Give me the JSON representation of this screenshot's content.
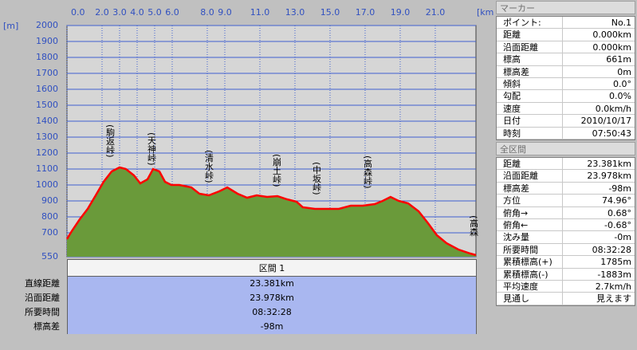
{
  "chart_data": {
    "type": "area",
    "x_label": "[km]",
    "y_label": "[m]",
    "xlim": [
      0,
      23.32
    ],
    "ylim": [
      550,
      2000
    ],
    "xticks": [
      {
        "value": 0,
        "label": "0.0"
      },
      {
        "value": 2,
        "label": "2.0"
      },
      {
        "value": 3,
        "label": "3.0"
      },
      {
        "value": 4,
        "label": "4.0"
      },
      {
        "value": 5,
        "label": "5.0"
      },
      {
        "value": 6,
        "label": "6.0"
      },
      {
        "value": 8,
        "label": "8.0"
      },
      {
        "value": 9,
        "label": "9.0"
      },
      {
        "value": 11,
        "label": "11.0"
      },
      {
        "value": 13,
        "label": "13.0"
      },
      {
        "value": 15,
        "label": "15.0"
      },
      {
        "value": 17,
        "label": "17.0"
      },
      {
        "value": 19,
        "label": "19.0"
      },
      {
        "value": 21,
        "label": "21.0"
      }
    ],
    "yticks": [
      2000,
      1900,
      1800,
      1700,
      1600,
      1500,
      1400,
      1300,
      1200,
      1100,
      1000,
      900,
      800,
      700,
      550
    ],
    "grid": true,
    "line_color": "#ff0000",
    "fill_color": "#6a9a3a",
    "x": [
      0,
      0.27,
      0.73,
      1.18,
      1.64,
      2.09,
      2.55,
      3.0,
      3.36,
      3.82,
      4.18,
      4.59,
      4.91,
      5.27,
      5.59,
      5.95,
      6.41,
      7.09,
      7.55,
      8.09,
      8.68,
      9.14,
      9.73,
      10.27,
      10.82,
      11.41,
      12.0,
      12.55,
      13.09,
      13.45,
      14.14,
      14.82,
      15.5,
      16.18,
      16.86,
      17.55,
      18.0,
      18.45,
      18.91,
      19.45,
      20.05,
      20.59,
      21.09,
      21.64,
      22.32,
      23.0,
      23.32
    ],
    "values": [
      661,
      710,
      785,
      850,
      935,
      1020,
      1085,
      1110,
      1100,
      1060,
      1010,
      1035,
      1100,
      1085,
      1020,
      1000,
      1000,
      985,
      945,
      935,
      960,
      985,
      945,
      920,
      935,
      925,
      930,
      910,
      895,
      860,
      850,
      850,
      850,
      870,
      870,
      880,
      900,
      925,
      900,
      885,
      835,
      760,
      685,
      635,
      595,
      570,
      560
    ],
    "annotations": [
      "(駒返峠)",
      "(天神峠)",
      "(清水峠)",
      "(崩土峠)",
      "(中坂峠)",
      "(高森峠)",
      "(高森"
    ]
  },
  "section": {
    "header": "区間 1",
    "rows": [
      [
        "直線距離",
        "23.381km"
      ],
      [
        "沿面距離",
        "23.978km"
      ],
      [
        "所要時間",
        "08:32:28"
      ],
      [
        "標高差",
        "-98m"
      ]
    ]
  },
  "marker": {
    "title": "マーカー",
    "rows": [
      [
        "ポイント:",
        "No.1"
      ],
      [
        "距離",
        "0.000km"
      ],
      [
        "沿面距離",
        "0.000km"
      ],
      [
        "標高",
        "661m"
      ],
      [
        "標高差",
        "0m"
      ],
      [
        "傾斜",
        "0.0°"
      ],
      [
        "勾配",
        "0.0%"
      ],
      [
        "速度",
        "0.0km/h"
      ],
      [
        "日付",
        "2010/10/17"
      ],
      [
        "時刻",
        "07:50:43"
      ]
    ]
  },
  "total": {
    "title": "全区間",
    "rows": [
      [
        "距離",
        "23.381km"
      ],
      [
        "沿面距離",
        "23.978km"
      ],
      [
        "標高差",
        "-98m"
      ],
      [
        "方位",
        "74.96°"
      ],
      [
        "俯角→",
        "0.68°"
      ],
      [
        "俯角←",
        "-0.68°"
      ],
      [
        "沈み量",
        "-0m"
      ],
      [
        "所要時間",
        "08:32:28"
      ],
      [
        "累積標高(+)",
        "1785m"
      ],
      [
        "累積標高(-)",
        "-1883m"
      ],
      [
        "平均速度",
        "2.7km/h"
      ],
      [
        "見通し",
        "見えます"
      ]
    ]
  }
}
